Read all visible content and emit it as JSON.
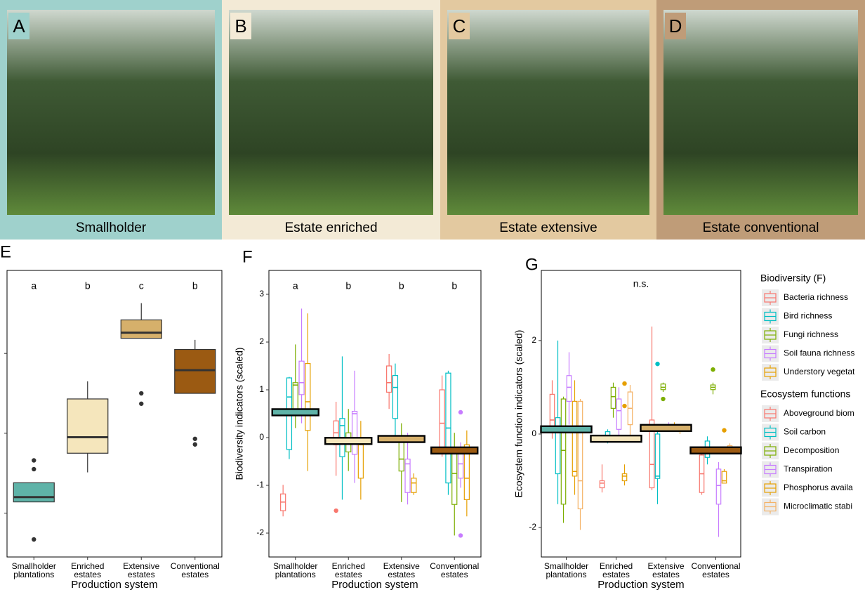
{
  "panels": [
    {
      "label": "A",
      "caption": "Smallholder"
    },
    {
      "label": "B",
      "caption": "Estate enriched"
    },
    {
      "label": "C",
      "caption": "Estate extensive"
    },
    {
      "label": "D",
      "caption": "Estate conventional"
    }
  ],
  "chart_data": [
    {
      "type": "box",
      "title": "E",
      "categories": [
        "Smallholder plantations",
        "Enriched estates",
        "Extensive estates",
        "Conventional estates"
      ],
      "category_colors": [
        "#5fb3a8",
        "#f5e6bc",
        "#d6b06b",
        "#9b5a12"
      ],
      "xlabel": "Production system",
      "ylim": [
        0.45,
        4.04
      ],
      "yticks": [
        1,
        2,
        3
      ],
      "ytick_labels": false,
      "letters": [
        "a",
        "b",
        "c",
        "b"
      ],
      "boxes": [
        {
          "low": 1.14,
          "q1": 1.14,
          "median": 1.2,
          "q3": 1.38,
          "high": 1.38,
          "outliers": [
            1.66,
            1.55,
            0.67
          ]
        },
        {
          "low": 1.51,
          "q1": 1.75,
          "median": 1.95,
          "q3": 2.43,
          "high": 2.65
        },
        {
          "low": 3.19,
          "q1": 3.19,
          "median": 3.26,
          "q3": 3.42,
          "high": 3.63,
          "outliers": [
            2.5,
            2.37
          ]
        },
        {
          "low": 2.5,
          "q1": 2.5,
          "median": 2.79,
          "q3": 3.05,
          "high": 3.17,
          "outliers": [
            1.93,
            1.86
          ]
        }
      ]
    },
    {
      "type": "grouped_box",
      "title": "F",
      "categories": [
        "Smallholder plantations",
        "Enriched estates",
        "Extensive estates",
        "Conventional estates"
      ],
      "category_colors": [
        "#5fb3a8",
        "#f5e6bc",
        "#d6b06b",
        "#9b5a12"
      ],
      "xlabel": "Production system",
      "ylabel": "Biodiversity indicators (scaled)",
      "ylim": [
        -2.5,
        3.5
      ],
      "yticks": [
        -2,
        -1,
        0,
        1,
        2,
        3
      ],
      "letters": [
        "a",
        "b",
        "b",
        "b"
      ],
      "legend_title": "Biodiversity (F)",
      "means": [
        0.53,
        -0.07,
        -0.03,
        -0.27
      ],
      "series": [
        {
          "name": "Bacteria richness",
          "color": "#F8766D",
          "boxes": [
            {
              "low": -1.65,
              "q1": -1.53,
              "median": -1.35,
              "q3": -1.18,
              "high": -0.99
            },
            {
              "low": -0.8,
              "q1": -0.15,
              "median": 0.1,
              "q3": 0.35,
              "high": 0.75,
              "outliers": [
                -1.53
              ]
            },
            {
              "low": 0.6,
              "q1": 0.95,
              "median": 1.15,
              "q3": 1.5,
              "high": 1.75
            },
            {
              "low": -0.4,
              "q1": -0.25,
              "median": 0.3,
              "q3": 1.0,
              "high": 1.3
            }
          ]
        },
        {
          "name": "Bird richness",
          "color": "#00BFC4",
          "boxes": [
            {
              "low": -0.45,
              "q1": -0.25,
              "median": 0.85,
              "q3": 1.25,
              "high": 1.27
            },
            {
              "low": -1.3,
              "q1": -0.4,
              "median": 0.25,
              "q3": 0.4,
              "high": 1.7
            },
            {
              "low": -0.1,
              "q1": 0.4,
              "median": 1.05,
              "q3": 1.3,
              "high": 1.55
            },
            {
              "low": -1.2,
              "q1": -0.95,
              "median": 0.2,
              "q3": 1.35,
              "high": 1.4
            }
          ]
        },
        {
          "name": "Fungi richness",
          "color": "#7CAE00",
          "boxes": [
            {
              "low": 0.2,
              "q1": 0.6,
              "median": 1.1,
              "q3": 1.15,
              "high": 1.95
            },
            {
              "low": -0.7,
              "q1": -0.3,
              "median": -0.05,
              "q3": 0.1,
              "high": 0.6
            },
            {
              "low": -1.35,
              "q1": -0.7,
              "median": -0.45,
              "q3": -0.05,
              "high": 0.3
            },
            {
              "low": -2.05,
              "q1": -1.4,
              "median": -0.75,
              "q3": -0.3,
              "high": 0.1
            }
          ]
        },
        {
          "name": "Soil fauna richness",
          "color": "#C77CFF",
          "boxes": [
            {
              "low": 0.3,
              "q1": 0.9,
              "median": 1.15,
              "q3": 1.6,
              "high": 2.7
            },
            {
              "low": -0.95,
              "q1": -0.35,
              "median": 0.5,
              "q3": 0.55,
              "high": 1.4
            },
            {
              "low": -1.4,
              "q1": -1.15,
              "median": -0.55,
              "q3": -0.45,
              "high": 0.1
            },
            {
              "low": -1.05,
              "q1": -0.85,
              "median": -0.55,
              "q3": -0.3,
              "high": -0.1,
              "outliers": [
                0.53,
                -2.05
              ]
            }
          ]
        },
        {
          "name": "Understory vegetat",
          "color": "#E69F00",
          "boxes": [
            {
              "low": -0.7,
              "q1": 0.15,
              "median": 0.75,
              "q3": 1.55,
              "high": 2.6
            },
            {
              "low": -1.3,
              "q1": -0.85,
              "median": -0.15,
              "q3": -0.1,
              "high": 0.35
            },
            {
              "low": -1.2,
              "q1": -1.15,
              "median": -0.95,
              "q3": -0.85,
              "high": -0.75
            },
            {
              "low": -1.65,
              "q1": -1.3,
              "median": -0.85,
              "q3": -0.15,
              "high": 0.15
            }
          ]
        }
      ]
    },
    {
      "type": "grouped_box",
      "title": "G",
      "categories": [
        "Smallholder plantations",
        "Enriched estates",
        "Extensive estates",
        "Conventional estates"
      ],
      "category_colors": [
        "#5fb3a8",
        "#f5e6bc",
        "#d6b06b",
        "#9b5a12"
      ],
      "xlabel": "Production system",
      "ylabel": "Ecosystem function indicators (scaled)",
      "ylim": [
        -2.63,
        3.5
      ],
      "yticks": [
        -2,
        0,
        2
      ],
      "annotation": "n.s.",
      "legend_title": "Ecosystem functions",
      "means": [
        0.1,
        -0.1,
        0.13,
        -0.35
      ],
      "series": [
        {
          "name": "Aboveground biom",
          "color": "#F8766D",
          "boxes": [
            {
              "low": -0.1,
              "q1": 0.05,
              "median": 0.3,
              "q3": 0.85,
              "high": 1.15
            },
            {
              "low": -1.25,
              "q1": -1.15,
              "median": -1.05,
              "q3": -1.0,
              "high": -0.65
            },
            {
              "low": -1.2,
              "q1": -1.15,
              "median": -0.65,
              "q3": 0.3,
              "high": 2.3
            },
            {
              "low": -1.3,
              "q1": -1.25,
              "median": -0.85,
              "q3": -0.45,
              "high": -0.3
            }
          ]
        },
        {
          "name": "Soil carbon",
          "color": "#00BFC4",
          "boxes": [
            {
              "low": -1.5,
              "q1": -0.85,
              "median": 0.05,
              "q3": 0.35,
              "high": 2.0
            },
            {
              "low": -0.2,
              "q1": -0.15,
              "median": -0.05,
              "q3": 0.05,
              "high": 0.1
            },
            {
              "low": -1.5,
              "q1": -0.95,
              "median": -0.9,
              "q3": 0.0,
              "high": 0.05,
              "outliers": [
                1.5
              ]
            },
            {
              "low": -0.65,
              "q1": -0.5,
              "median": -0.35,
              "q3": -0.15,
              "high": -0.05
            }
          ]
        },
        {
          "name": "Decomposition",
          "color": "#7CAE00",
          "boxes": [
            {
              "low": -1.9,
              "q1": -1.5,
              "median": -0.35,
              "q3": 0.75,
              "high": 0.8
            },
            {
              "low": 0.35,
              "q1": 0.55,
              "median": 0.8,
              "q3": 1.0,
              "high": 1.1
            },
            {
              "low": 0.9,
              "q1": 0.95,
              "median": 1.0,
              "q3": 1.07,
              "high": 1.1,
              "outliers": [
                0.75
              ]
            },
            {
              "low": 0.85,
              "q1": 0.95,
              "median": 1.0,
              "q3": 1.05,
              "high": 1.1,
              "outliers": [
                1.38
              ]
            }
          ]
        },
        {
          "name": "Transpiration",
          "color": "#C77CFF",
          "boxes": [
            {
              "low": 0.2,
              "q1": 0.7,
              "median": 1.0,
              "q3": 1.25,
              "high": 1.75
            },
            {
              "low": -0.1,
              "q1": 0.1,
              "median": 0.5,
              "q3": 0.75,
              "high": 1.0
            },
            {
              "low": 0.05,
              "q1": 0.1,
              "median": 0.15,
              "q3": 0.2,
              "high": 0.25
            },
            {
              "low": -2.2,
              "q1": -1.5,
              "median": -1.1,
              "q3": -0.75,
              "high": -0.6
            }
          ]
        },
        {
          "name": "Phosphorus availa",
          "color": "#E69F00",
          "boxes": [
            {
              "low": -1.3,
              "q1": -0.9,
              "median": -0.8,
              "q3": 0.7,
              "high": 1.15
            },
            {
              "low": -1.1,
              "q1": -1.0,
              "median": -0.9,
              "q3": -0.85,
              "high": -0.65,
              "outliers": [
                1.08,
                0.6
              ]
            },
            {
              "low": 0.05,
              "q1": 0.1,
              "median": 0.15,
              "q3": 0.2,
              "high": 0.25
            },
            {
              "low": -1.05,
              "q1": -1.05,
              "median": -1.0,
              "q3": -0.8,
              "high": -0.75,
              "outliers": [
                0.08
              ]
            }
          ]
        },
        {
          "name": "Microclimatic stabi",
          "color": "#F4B266",
          "boxes": [
            {
              "low": -2.05,
              "q1": -1.6,
              "median": -1.0,
              "q3": 0.7,
              "high": 0.75
            },
            {
              "low": -0.1,
              "q1": 0.2,
              "median": 0.55,
              "q3": 0.9,
              "high": 1.05
            },
            {
              "low": 0.0,
              "q1": 0.05,
              "median": 0.1,
              "q3": 0.15,
              "high": 0.2
            },
            {
              "low": -0.4,
              "q1": -0.35,
              "median": -0.3,
              "q3": -0.25,
              "high": -0.2
            }
          ]
        }
      ]
    }
  ]
}
